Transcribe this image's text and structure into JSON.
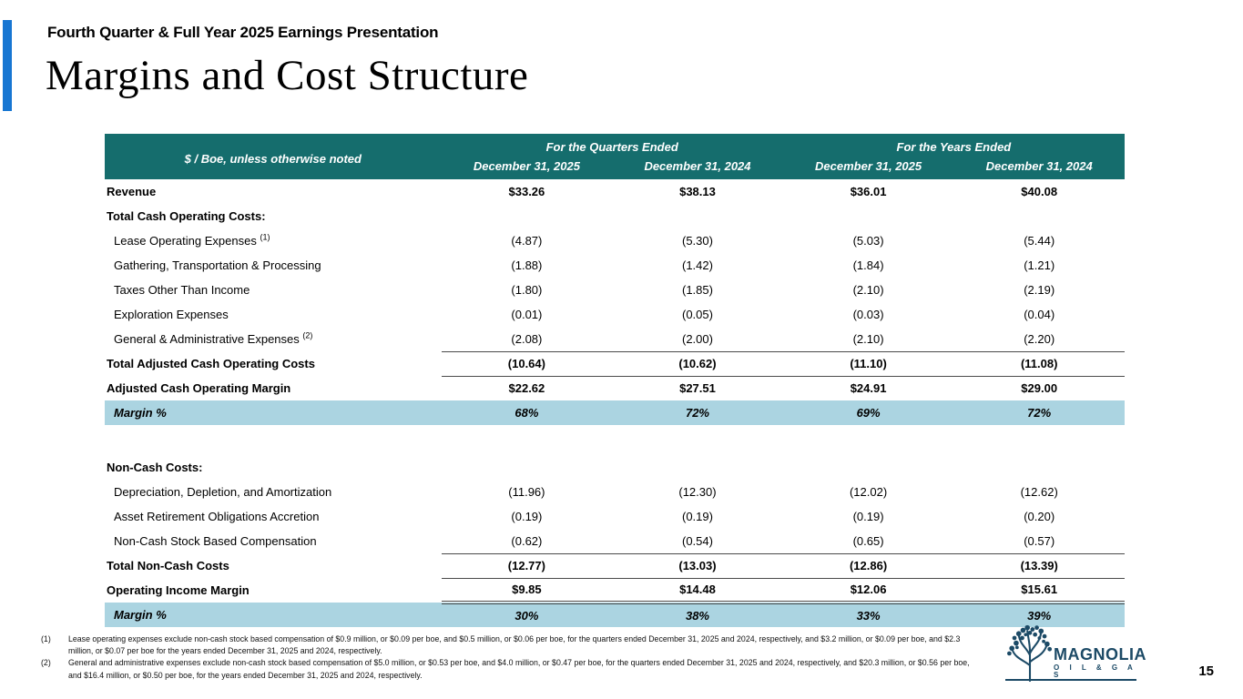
{
  "slide": {
    "eyebrow": "Fourth Quarter & Full Year 2025 Earnings Presentation",
    "title": "Margins and Cost Structure",
    "page_number": "15"
  },
  "colors": {
    "accent_bar": "#1776d2",
    "table_header_bg": "#156d6d",
    "margin_row_bg": "#abd4e1",
    "logo_navy": "#1c4a66"
  },
  "table": {
    "corner_label": "$ / Boe, unless otherwise noted",
    "group_headers": [
      "For the Quarters Ended",
      "For the Years Ended"
    ],
    "column_headers": [
      "December 31, 2025",
      "December 31, 2024",
      "December 31, 2025",
      "December 31, 2024"
    ],
    "rows": [
      {
        "label": "Revenue",
        "sup": "",
        "values": [
          "$33.26",
          "$38.13",
          "$36.01",
          "$40.08"
        ],
        "bold": true,
        "indent": false,
        "highlight": false,
        "border": "none"
      },
      {
        "label": "Total Cash Operating Costs:",
        "sup": "",
        "values": [
          "",
          "",
          "",
          ""
        ],
        "bold": true,
        "indent": false,
        "highlight": false,
        "border": "none"
      },
      {
        "label": "Lease Operating Expenses",
        "sup": "(1)",
        "values": [
          "(4.87)",
          "(5.30)",
          "(5.03)",
          "(5.44)"
        ],
        "bold": false,
        "indent": true,
        "highlight": false,
        "border": "none"
      },
      {
        "label": "Gathering, Transportation & Processing",
        "sup": "",
        "values": [
          "(1.88)",
          "(1.42)",
          "(1.84)",
          "(1.21)"
        ],
        "bold": false,
        "indent": true,
        "highlight": false,
        "border": "none"
      },
      {
        "label": "Taxes Other Than Income",
        "sup": "",
        "values": [
          "(1.80)",
          "(1.85)",
          "(2.10)",
          "(2.19)"
        ],
        "bold": false,
        "indent": true,
        "highlight": false,
        "border": "none"
      },
      {
        "label": "Exploration Expenses",
        "sup": "",
        "values": [
          "(0.01)",
          "(0.05)",
          "(0.03)",
          "(0.04)"
        ],
        "bold": false,
        "indent": true,
        "highlight": false,
        "border": "none"
      },
      {
        "label": "General & Administrative Expenses",
        "sup": "(2)",
        "values": [
          "(2.08)",
          "(2.00)",
          "(2.10)",
          "(2.20)"
        ],
        "bold": false,
        "indent": true,
        "highlight": false,
        "border": "single"
      },
      {
        "label": "Total Adjusted Cash Operating Costs",
        "sup": "",
        "values": [
          "(10.64)",
          "(10.62)",
          "(11.10)",
          "(11.08)"
        ],
        "bold": true,
        "indent": false,
        "highlight": false,
        "border": "single"
      },
      {
        "label": "Adjusted Cash Operating Margin",
        "sup": "",
        "values": [
          "$22.62",
          "$27.51",
          "$24.91",
          "$29.00"
        ],
        "bold": true,
        "indent": false,
        "highlight": false,
        "border": "none"
      },
      {
        "label": "Margin %",
        "sup": "",
        "values": [
          "68%",
          "72%",
          "69%",
          "72%"
        ],
        "bold": true,
        "indent": false,
        "highlight": true,
        "border": "none"
      },
      {
        "spacer": true
      },
      {
        "label": "Non-Cash Costs:",
        "sup": "",
        "values": [
          "",
          "",
          "",
          ""
        ],
        "bold": true,
        "indent": false,
        "highlight": false,
        "border": "none"
      },
      {
        "label": "Depreciation, Depletion, and Amortization",
        "sup": "",
        "values": [
          "(11.96)",
          "(12.30)",
          "(12.02)",
          "(12.62)"
        ],
        "bold": false,
        "indent": true,
        "highlight": false,
        "border": "none"
      },
      {
        "label": "Asset Retirement Obligations Accretion",
        "sup": "",
        "values": [
          "(0.19)",
          "(0.19)",
          "(0.19)",
          "(0.20)"
        ],
        "bold": false,
        "indent": true,
        "highlight": false,
        "border": "none"
      },
      {
        "label": "Non-Cash Stock Based Compensation",
        "sup": "",
        "values": [
          "(0.62)",
          "(0.54)",
          "(0.65)",
          "(0.57)"
        ],
        "bold": false,
        "indent": true,
        "highlight": false,
        "border": "single"
      },
      {
        "label": "Total Non-Cash Costs",
        "sup": "",
        "values": [
          "(12.77)",
          "(13.03)",
          "(12.86)",
          "(13.39)"
        ],
        "bold": true,
        "indent": false,
        "highlight": false,
        "border": "single"
      },
      {
        "label": "Operating Income Margin",
        "sup": "",
        "values": [
          "$9.85",
          "$14.48",
          "$12.06",
          "$15.61"
        ],
        "bold": true,
        "indent": false,
        "highlight": false,
        "border": "double"
      },
      {
        "label": "Margin %",
        "sup": "",
        "values": [
          "30%",
          "38%",
          "33%",
          "39%"
        ],
        "bold": true,
        "indent": false,
        "highlight": true,
        "border": "none"
      }
    ]
  },
  "footnotes": [
    {
      "num": "(1)",
      "text": "Lease operating expenses exclude non-cash stock based compensation of $0.9 million, or $0.09 per boe, and $0.5 million, or $0.06 per boe, for the quarters ended December 31, 2025 and 2024, respectively, and $3.2 million, or $0.09 per boe, and $2.3 million, or $0.07 per boe for the years ended December 31, 2025 and 2024, respectively."
    },
    {
      "num": "(2)",
      "text": "General and administrative expenses exclude non-cash stock based compensation of $5.0 million, or $0.53 per boe, and $4.0 million, or $0.47 per boe, for the quarters ended December 31, 2025 and 2024, respectively, and $20.3 million, or $0.56 per boe, and $16.4 million, or $0.50 per boe, for the years ended December 31, 2025 and 2024, respectively."
    }
  ],
  "logo": {
    "name": "MAGNOLIA",
    "sub": "O I L & G A S"
  }
}
